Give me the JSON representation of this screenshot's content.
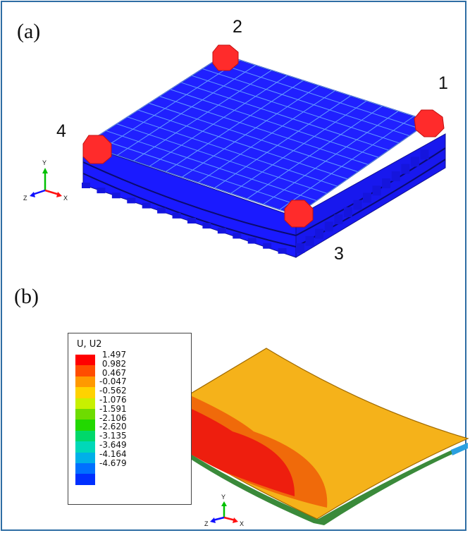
{
  "panel_a": {
    "label": "(a)",
    "corners": [
      "1",
      "2",
      "3",
      "4"
    ],
    "axis_labels": {
      "y": "Y",
      "z": "Z",
      "x": "X"
    }
  },
  "panel_b": {
    "label": "(b)",
    "legend": {
      "title": "U, U2",
      "values": [
        "1.497",
        "0.982",
        "0.467",
        "-0.047",
        "-0.562",
        "-1.076",
        "-1.591",
        "-2.106",
        "-2.620",
        "-3.135",
        "-3.649",
        "-4.164",
        "-4.679"
      ],
      "colors": [
        "#ff0000",
        "#ff4d00",
        "#ff9900",
        "#ffd200",
        "#c8f000",
        "#6edc00",
        "#22d800",
        "#00d86a",
        "#00d8b8",
        "#00b0e8",
        "#0070ff",
        "#0030ff",
        "#0000ff"
      ]
    },
    "axis_labels": {
      "y": "Y",
      "z": "Z",
      "x": "X"
    }
  },
  "colors": {
    "mesh_blue": "#1a1aff",
    "support_red": "#ff2b2b",
    "plate_orange": "#f5b21a",
    "contour_red": "#ee1e0e",
    "contour_dark_orange": "#f06a0a",
    "frame": "#2e6da4"
  }
}
